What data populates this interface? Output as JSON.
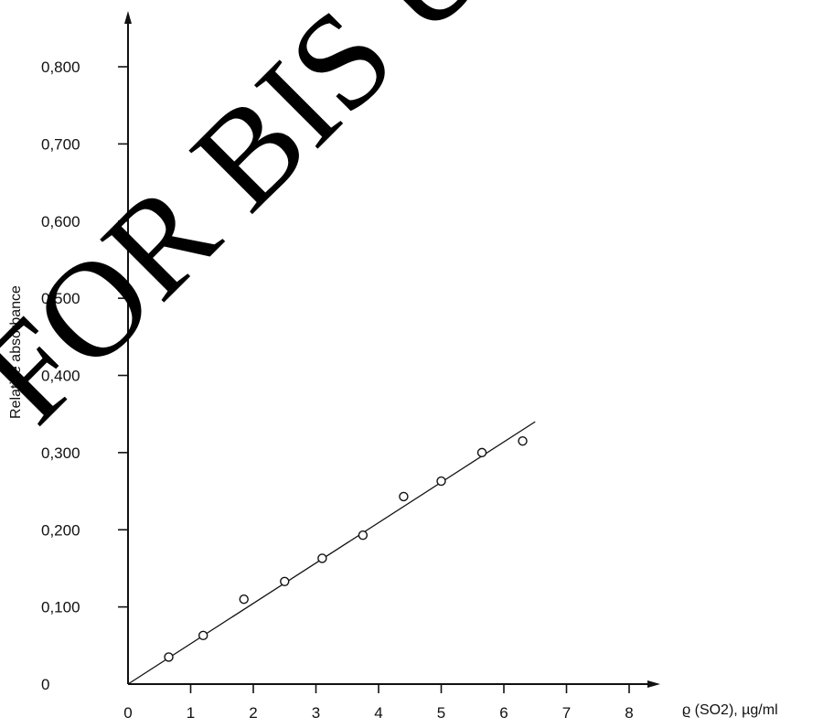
{
  "chart_data": {
    "type": "scatter",
    "title": "",
    "xlabel": "ϱ (SO2), µg/ml",
    "ylabel": "Relative absorbance",
    "xlim": [
      0,
      8
    ],
    "ylim": [
      0,
      0.8
    ],
    "x_ticks": [
      0,
      1,
      2,
      3,
      4,
      5,
      6,
      7,
      8
    ],
    "x_tick_labels": [
      "0",
      "1",
      "2",
      "3",
      "4",
      "5",
      "6",
      "7",
      "8"
    ],
    "y_ticks": [
      0,
      0.1,
      0.2,
      0.3,
      0.4,
      0.5,
      0.6,
      0.7,
      0.8
    ],
    "y_tick_labels": [
      "0",
      "0,100",
      "0,200",
      "0,300",
      "0,400",
      "0,500",
      "0,600",
      "0,700",
      "0,800"
    ],
    "grid": false,
    "legend": "none",
    "series": [
      {
        "marker": "open-circle",
        "x": [
          0.65,
          1.2,
          1.85,
          2.5,
          3.1,
          3.75,
          4.4,
          5.0,
          5.65,
          6.3
        ],
        "y": [
          0.035,
          0.063,
          0.11,
          0.133,
          0.163,
          0.193,
          0.243,
          0.263,
          0.3,
          0.315
        ]
      }
    ],
    "fit_line": {
      "x": [
        0,
        6.5
      ],
      "y": [
        0,
        0.34
      ]
    }
  },
  "watermark": {
    "text": "FOR BIS USE"
  },
  "colors": {
    "ink": "#111111",
    "background": "#ffffff"
  }
}
